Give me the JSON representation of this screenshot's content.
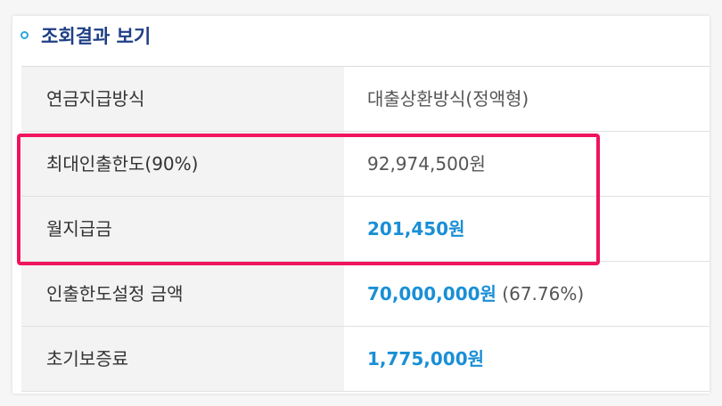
{
  "header": {
    "title": "조회결과 보기"
  },
  "rows": [
    {
      "label": "연금지급방식",
      "value": "대출상환방식(정액형)",
      "highlight": false,
      "suffix": ""
    },
    {
      "label": "최대인출한도(90%)",
      "value": "92,974,500원",
      "highlight": false,
      "suffix": ""
    },
    {
      "label": "월지급금",
      "value": "201,450원",
      "highlight": true,
      "suffix": ""
    },
    {
      "label": "인출한도설정 금액",
      "value": "70,000,000원",
      "highlight": true,
      "suffix": " (67.76%)"
    },
    {
      "label": "초기보증료",
      "value": "1,775,000원",
      "highlight": true,
      "suffix": ""
    }
  ],
  "colors": {
    "title": "#1e3f86",
    "accent_value": "#1a8fd6",
    "highlight_border": "#f0145c",
    "bullet": "#29a8e0"
  }
}
